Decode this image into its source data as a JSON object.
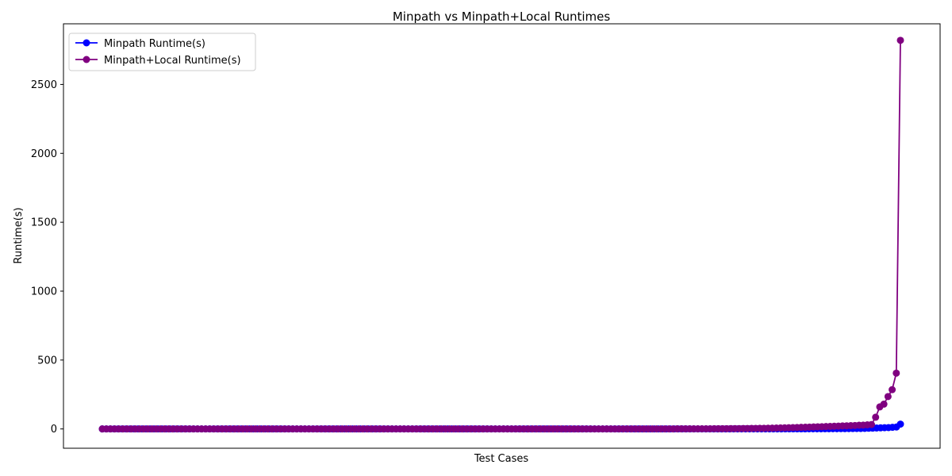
{
  "chart_data": {
    "type": "line",
    "title": "Minpath vs Minpath+Local Runtimes",
    "xlabel": "Test Cases",
    "ylabel": "Runtime(s)",
    "ylim": [
      -140,
      2940
    ],
    "yticks": [
      0,
      500,
      1000,
      1500,
      2000,
      2500
    ],
    "ytick_labels": [
      "0",
      "500",
      "1000",
      "1500",
      "2000",
      "2500"
    ],
    "x_tick_labels_shown": false,
    "grid": false,
    "legend": {
      "position": "top-left"
    },
    "series": [
      {
        "name": "Minpath Runtime(s)",
        "color": "#0000ff",
        "marker": "circle",
        "values": [
          0.1,
          0.1,
          0.1,
          0.1,
          0.1,
          0.1,
          0.1,
          0.1,
          0.1,
          0.1,
          0.1,
          0.1,
          0.1,
          0.1,
          0.1,
          0.1,
          0.1,
          0.1,
          0.1,
          0.1,
          0.1,
          0.1,
          0.1,
          0.1,
          0.1,
          0.1,
          0.1,
          0.1,
          0.1,
          0.1,
          0.1,
          0.1,
          0.1,
          0.1,
          0.1,
          0.1,
          0.1,
          0.1,
          0.1,
          0.1,
          0.1,
          0.1,
          0.1,
          0.1,
          0.1,
          0.1,
          0.1,
          0.1,
          0.1,
          0.1,
          0.1,
          0.1,
          0.1,
          0.1,
          0.1,
          0.1,
          0.1,
          0.1,
          0.1,
          0.1,
          0.1,
          0.1,
          0.1,
          0.1,
          0.1,
          0.1,
          0.1,
          0.1,
          0.1,
          0.1,
          0.1,
          0.1,
          0.1,
          0.1,
          0.1,
          0.1,
          0.1,
          0.1,
          0.1,
          0.1,
          0.1,
          0.1,
          0.1,
          0.1,
          0.1,
          0.1,
          0.1,
          0.1,
          0.1,
          0.1,
          0.1,
          0.1,
          0.1,
          0.1,
          0.1,
          0.1,
          0.1,
          0.1,
          0.1,
          0.1,
          0.1,
          0.1,
          0.1,
          0.1,
          0.1,
          0.1,
          0.1,
          0.1,
          0.1,
          0.1,
          0.1,
          0.1,
          0.1,
          0.1,
          0.1,
          0.1,
          0.1,
          0.1,
          0.1,
          0.1,
          0.1,
          0.1,
          0.1,
          0.1,
          0.1,
          0.1,
          0.1,
          0.1,
          0.1,
          0.1,
          0.1,
          0.1,
          0.1,
          0.1,
          0.1,
          0.1,
          0.1,
          0.1,
          0.1,
          0.1,
          0.1,
          0.1,
          0.1,
          0.1,
          0.1,
          0.1,
          0.1,
          0.1,
          0.1,
          0.1,
          0.2,
          0.2,
          0.2,
          0.2,
          0.2,
          0.2,
          0.2,
          0.2,
          0.2,
          0.3,
          0.3,
          0.3,
          0.3,
          0.3,
          0.4,
          0.4,
          0.4,
          0.5,
          0.5,
          0.5,
          0.6,
          0.6,
          0.7,
          0.7,
          0.8,
          0.8,
          0.9,
          1.0,
          1.1,
          1.2,
          1.3,
          1.4,
          1.5,
          1.7,
          1.8,
          2.0,
          2.2,
          2.4,
          2.6,
          2.9,
          3.2,
          3.5,
          4,
          5,
          6,
          7,
          8,
          9,
          10,
          12,
          14,
          35
        ]
      },
      {
        "name": "Minpath+Local Runtime(s)",
        "color": "#800080",
        "marker": "circle",
        "values": [
          0.1,
          0.1,
          0.1,
          0.1,
          0.1,
          0.1,
          0.1,
          0.1,
          0.1,
          0.1,
          0.1,
          0.1,
          0.1,
          0.1,
          0.1,
          0.1,
          0.1,
          0.1,
          0.1,
          0.1,
          0.1,
          0.1,
          0.1,
          0.1,
          0.1,
          0.1,
          0.1,
          0.1,
          0.1,
          0.1,
          0.1,
          0.1,
          0.1,
          0.1,
          0.1,
          0.1,
          0.1,
          0.1,
          0.1,
          0.1,
          0.1,
          0.1,
          0.1,
          0.1,
          0.1,
          0.1,
          0.1,
          0.1,
          0.1,
          0.1,
          0.1,
          0.1,
          0.1,
          0.1,
          0.1,
          0.1,
          0.1,
          0.1,
          0.1,
          0.1,
          0.1,
          0.1,
          0.1,
          0.1,
          0.1,
          0.1,
          0.1,
          0.1,
          0.1,
          0.1,
          0.1,
          0.1,
          0.1,
          0.1,
          0.1,
          0.1,
          0.1,
          0.1,
          0.1,
          0.1,
          0.1,
          0.1,
          0.1,
          0.1,
          0.1,
          0.1,
          0.1,
          0.1,
          0.1,
          0.1,
          0.1,
          0.1,
          0.1,
          0.1,
          0.1,
          0.1,
          0.1,
          0.1,
          0.1,
          0.1,
          0.1,
          0.1,
          0.1,
          0.1,
          0.1,
          0.1,
          0.1,
          0.1,
          0.1,
          0.1,
          0.1,
          0.1,
          0.1,
          0.1,
          0.1,
          0.1,
          0.1,
          0.1,
          0.1,
          0.2,
          0.2,
          0.2,
          0.2,
          0.2,
          0.2,
          0.2,
          0.3,
          0.3,
          0.3,
          0.3,
          0.3,
          0.4,
          0.4,
          0.4,
          0.5,
          0.5,
          0.5,
          0.6,
          0.6,
          0.7,
          0.7,
          0.8,
          0.8,
          0.9,
          1.0,
          1.1,
          1.2,
          1.3,
          1.5,
          1.6,
          1.8,
          2.0,
          2.2,
          2.4,
          2.7,
          3.0,
          3.3,
          3.6,
          4.0,
          4.4,
          4.9,
          5.4,
          6.0,
          6.6,
          7.3,
          8.0,
          8.8,
          9.7,
          10.5,
          11.5,
          12.5,
          13.5,
          14.5,
          15.5,
          16.5,
          17.5,
          18.5,
          19.5,
          20.5,
          22,
          23,
          24,
          25,
          27,
          28,
          30,
          32,
          85,
          160,
          180,
          235,
          285,
          405,
          2820
        ]
      }
    ]
  }
}
